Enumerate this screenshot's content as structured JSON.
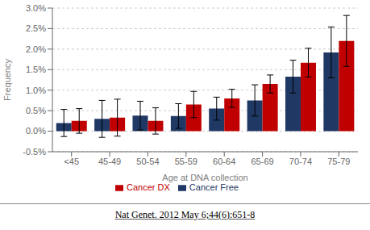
{
  "chart_data": {
    "type": "bar",
    "categories": [
      "<45",
      "45-49",
      "50-54",
      "55-59",
      "60-64",
      "65-69",
      "70-74",
      "75-79"
    ],
    "series": [
      {
        "name": "Cancer Free",
        "color": "#1F3864",
        "values": [
          0.2,
          0.3,
          0.38,
          0.37,
          0.55,
          0.75,
          1.33,
          1.92
        ],
        "errors": [
          0.33,
          0.45,
          0.35,
          0.3,
          0.28,
          0.38,
          0.4,
          0.62
        ]
      },
      {
        "name": "Cancer DX",
        "color": "#C00000",
        "values": [
          0.25,
          0.33,
          0.25,
          0.65,
          0.8,
          1.15,
          1.67,
          2.2
        ],
        "errors": [
          0.3,
          0.45,
          0.32,
          0.32,
          0.22,
          0.22,
          0.35,
          0.62
        ]
      }
    ],
    "xlabel": "Age at DNA collection",
    "ylabel": "Frequency",
    "ylim": [
      -0.5,
      3.0
    ],
    "yticks": [
      {
        "value": -0.5,
        "label": "-0.5%"
      },
      {
        "value": 0.0,
        "label": "0.0%"
      },
      {
        "value": 0.5,
        "label": "0.5%"
      },
      {
        "value": 1.0,
        "label": "1.0%"
      },
      {
        "value": 1.5,
        "label": "1.5%"
      },
      {
        "value": 2.0,
        "label": "2.0%"
      },
      {
        "value": 2.5,
        "label": "2.5%"
      },
      {
        "value": 3.0,
        "label": "3.0%"
      }
    ],
    "grid": "y",
    "legend": "bottom",
    "annotations": [
      "Nat Genet. 2012 May 6;44(6):651-8"
    ]
  }
}
